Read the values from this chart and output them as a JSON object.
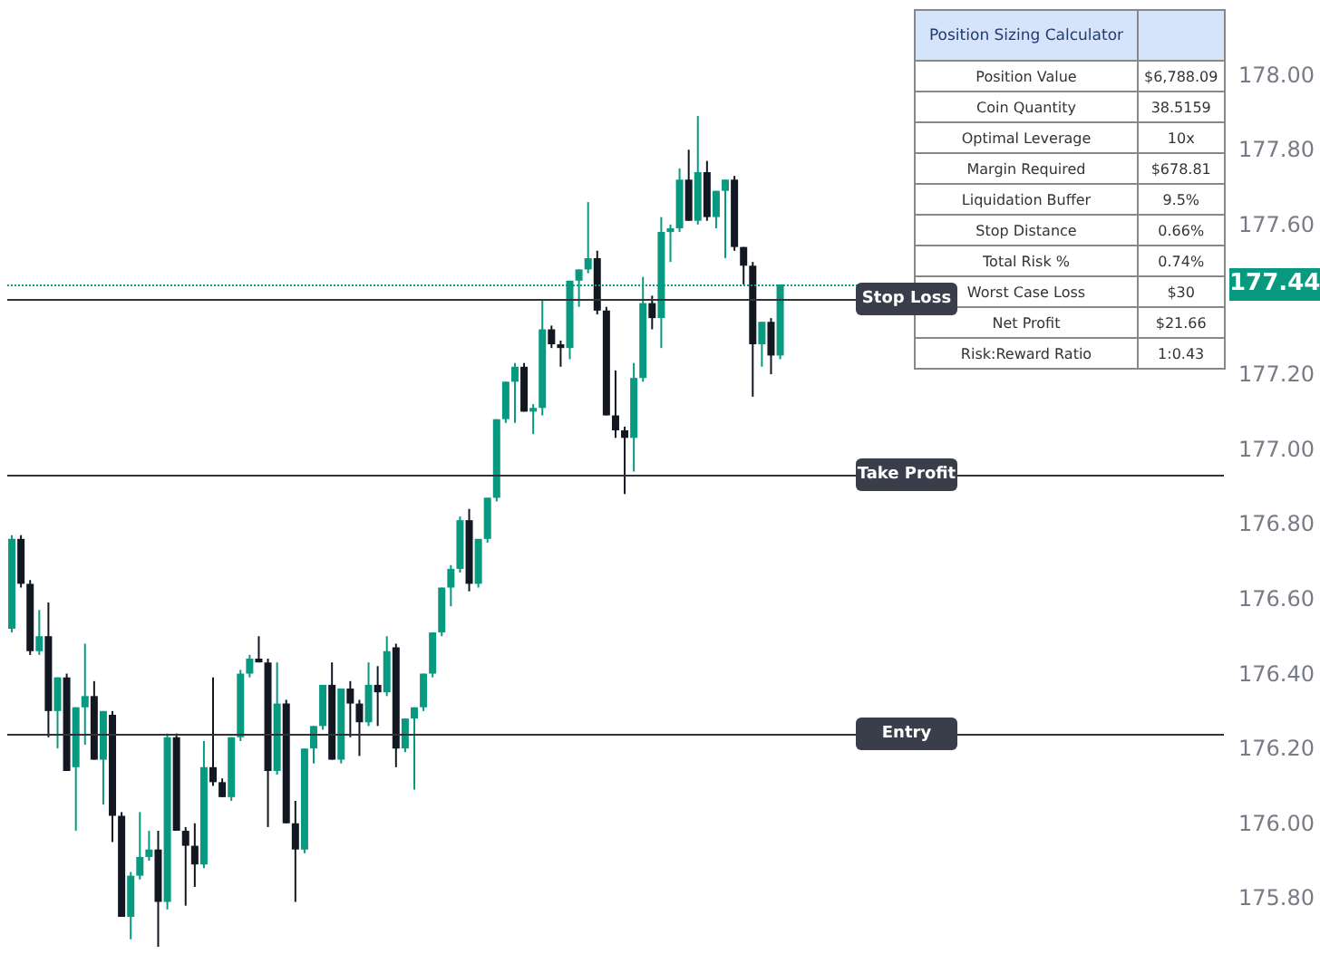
{
  "chart_data": {
    "type": "candlestick",
    "title": "Position Sizing Calculator",
    "categories": [
      null,
      null,
      null,
      null,
      null,
      null,
      null,
      null,
      null,
      null,
      null,
      null,
      null,
      null,
      null,
      null,
      null,
      null,
      null,
      null,
      null,
      null,
      null,
      null,
      null,
      null,
      null,
      null,
      null,
      null,
      null,
      null,
      null,
      null,
      null,
      null,
      null,
      null,
      null,
      null,
      null,
      null,
      null,
      null,
      null,
      null,
      null,
      null,
      null,
      null,
      null,
      null,
      null,
      null,
      null,
      null,
      null,
      null,
      null,
      null,
      null,
      null,
      null,
      null,
      null,
      null,
      null,
      null,
      null,
      null,
      null,
      null,
      null,
      null,
      null,
      null,
      null,
      null,
      null,
      null,
      null,
      null,
      null,
      null,
      null,
      null,
      null,
      null,
      null,
      null,
      null,
      null,
      null,
      null,
      null,
      null,
      null,
      null,
      null,
      null,
      null,
      null,
      null,
      null,
      null,
      null,
      null,
      null,
      null,
      null,
      null,
      null,
      null,
      null,
      null,
      null,
      null,
      null,
      null,
      null,
      null,
      null,
      null,
      null,
      null,
      null,
      null,
      null,
      null,
      null,
      null,
      null,
      null,
      null
    ],
    "ohlc": [
      [
        176.52,
        176.77,
        176.51,
        176.76
      ],
      [
        176.76,
        176.77,
        176.63,
        176.64
      ],
      [
        176.64,
        176.65,
        176.45,
        176.46
      ],
      [
        176.46,
        176.57,
        176.45,
        176.5
      ],
      [
        176.5,
        176.59,
        176.23,
        176.3
      ],
      [
        176.3,
        176.39,
        176.2,
        176.39
      ],
      [
        176.39,
        176.4,
        176.14,
        176.14
      ],
      [
        176.15,
        176.31,
        175.98,
        176.31
      ],
      [
        176.31,
        176.48,
        176.21,
        176.34
      ],
      [
        176.34,
        176.38,
        176.17,
        176.17
      ],
      [
        176.17,
        176.3,
        176.05,
        176.3
      ],
      [
        176.29,
        176.3,
        175.95,
        176.02
      ],
      [
        176.02,
        176.03,
        175.75,
        175.75
      ],
      [
        175.75,
        175.87,
        175.69,
        175.86
      ],
      [
        175.86,
        176.03,
        175.85,
        175.91
      ],
      [
        175.91,
        175.98,
        175.9,
        175.93
      ],
      [
        175.93,
        175.98,
        175.67,
        175.79
      ],
      [
        175.79,
        176.24,
        175.77,
        176.23
      ],
      [
        176.23,
        176.24,
        175.98,
        175.98
      ],
      [
        175.98,
        175.99,
        175.78,
        175.94
      ],
      [
        175.94,
        176.0,
        175.83,
        175.89
      ],
      [
        175.89,
        176.22,
        175.88,
        176.15
      ],
      [
        176.15,
        176.39,
        176.1,
        176.11
      ],
      [
        176.11,
        176.12,
        176.07,
        176.07
      ],
      [
        176.07,
        176.23,
        176.06,
        176.23
      ],
      [
        176.23,
        176.41,
        176.22,
        176.4
      ],
      [
        176.4,
        176.45,
        176.39,
        176.44
      ],
      [
        176.44,
        176.5,
        176.43,
        176.43
      ],
      [
        176.43,
        176.44,
        175.99,
        176.14
      ],
      [
        176.14,
        176.43,
        176.13,
        176.32
      ],
      [
        176.32,
        176.33,
        176.0,
        176.0
      ],
      [
        176.0,
        176.06,
        175.79,
        175.93
      ],
      [
        175.93,
        176.2,
        175.92,
        176.2
      ],
      [
        176.2,
        176.26,
        176.16,
        176.26
      ],
      [
        176.26,
        176.37,
        176.25,
        176.37
      ],
      [
        176.37,
        176.43,
        176.17,
        176.17
      ],
      [
        176.17,
        176.36,
        176.16,
        176.36
      ],
      [
        176.36,
        176.38,
        176.23,
        176.32
      ],
      [
        176.32,
        176.33,
        176.18,
        176.27
      ],
      [
        176.27,
        176.43,
        176.26,
        176.37
      ],
      [
        176.37,
        176.42,
        176.26,
        176.35
      ],
      [
        176.35,
        176.5,
        176.34,
        176.46
      ],
      [
        176.47,
        176.48,
        176.15,
        176.2
      ],
      [
        176.2,
        176.28,
        176.19,
        176.28
      ],
      [
        176.28,
        176.31,
        176.09,
        176.31
      ],
      [
        176.31,
        176.4,
        176.3,
        176.4
      ],
      [
        176.4,
        176.51,
        176.39,
        176.51
      ],
      [
        176.51,
        176.63,
        176.5,
        176.63
      ],
      [
        176.63,
        176.69,
        176.58,
        176.68
      ],
      [
        176.68,
        176.82,
        176.67,
        176.81
      ],
      [
        176.81,
        176.84,
        176.62,
        176.64
      ],
      [
        176.64,
        176.76,
        176.63,
        176.76
      ],
      [
        176.76,
        176.87,
        176.75,
        176.87
      ],
      [
        176.87,
        177.08,
        176.86,
        177.08
      ],
      [
        177.08,
        177.18,
        177.07,
        177.18
      ],
      [
        177.18,
        177.23,
        177.07,
        177.22
      ],
      [
        177.22,
        177.23,
        177.1,
        177.1
      ],
      [
        177.1,
        177.12,
        177.04,
        177.11
      ],
      [
        177.11,
        177.4,
        177.09,
        177.32
      ],
      [
        177.32,
        177.33,
        177.27,
        177.28
      ],
      [
        177.28,
        177.29,
        177.22,
        177.27
      ],
      [
        177.27,
        177.45,
        177.24,
        177.45
      ],
      [
        177.45,
        177.48,
        177.38,
        177.48
      ],
      [
        177.48,
        177.66,
        177.47,
        177.51
      ],
      [
        177.51,
        177.53,
        177.36,
        177.37
      ],
      [
        177.37,
        177.38,
        177.09,
        177.09
      ],
      [
        177.09,
        177.21,
        177.03,
        177.05
      ],
      [
        177.05,
        177.06,
        176.88,
        177.03
      ],
      [
        177.03,
        177.23,
        176.94,
        177.19
      ],
      [
        177.19,
        177.46,
        177.18,
        177.39
      ],
      [
        177.39,
        177.41,
        177.32,
        177.35
      ],
      [
        177.35,
        177.62,
        177.27,
        177.58
      ],
      [
        177.58,
        177.6,
        177.5,
        177.59
      ],
      [
        177.59,
        177.75,
        177.58,
        177.72
      ],
      [
        177.72,
        177.8,
        177.61,
        177.61
      ],
      [
        177.61,
        177.89,
        177.6,
        177.74
      ],
      [
        177.74,
        177.77,
        177.61,
        177.62
      ],
      [
        177.62,
        177.69,
        177.59,
        177.69
      ],
      [
        177.69,
        177.72,
        177.51,
        177.72
      ],
      [
        177.72,
        177.73,
        177.53,
        177.54
      ],
      [
        177.54,
        177.54,
        177.44,
        177.49
      ],
      [
        177.49,
        177.5,
        177.14,
        177.28
      ],
      [
        177.28,
        177.34,
        177.22,
        177.34
      ],
      [
        177.34,
        177.35,
        177.2,
        177.25
      ],
      [
        177.25,
        177.44,
        177.24,
        177.44
      ],
      null,
      null,
      null,
      null,
      null,
      null,
      null,
      null,
      null,
      null,
      null,
      null,
      null,
      null,
      null,
      null,
      null,
      null,
      null,
      null,
      null,
      null,
      null,
      null,
      null,
      null,
      null,
      null,
      null,
      null,
      null,
      null,
      null,
      null,
      null,
      null,
      null,
      null,
      null,
      null,
      null,
      null,
      null,
      null,
      null,
      null,
      null,
      null,
      null
    ],
    "colors": [
      "#089981",
      "#131722",
      "#131722",
      "#089981",
      "#131722",
      "#089981",
      "#131722",
      "#089981",
      "#089981",
      "#131722",
      "#089981",
      "#131722",
      "#131722",
      "#089981",
      "#089981",
      "#089981",
      "#131722",
      "#089981",
      "#131722",
      "#131722",
      "#131722",
      "#089981",
      "#131722",
      "#131722",
      "#089981",
      "#089981",
      "#089981",
      "#131722",
      "#131722",
      "#089981",
      "#131722",
      "#131722",
      "#089981",
      "#089981",
      "#089981",
      "#131722",
      "#089981",
      "#131722",
      "#131722",
      "#089981",
      "#131722",
      "#089981",
      "#131722",
      "#089981",
      "#089981",
      "#089981",
      "#089981",
      "#089981",
      "#089981",
      "#089981",
      "#131722",
      "#089981",
      "#089981",
      "#089981",
      "#089981",
      "#089981",
      "#131722",
      "#089981",
      "#089981",
      "#131722",
      "#131722",
      "#089981",
      "#089981",
      "#089981",
      "#131722",
      "#131722",
      "#131722",
      "#131722",
      "#089981",
      "#089981",
      "#131722",
      "#089981",
      "#089981",
      "#089981",
      "#131722",
      "#089981",
      "#131722",
      "#089981",
      "#089981",
      "#131722",
      "#131722",
      "#131722",
      "#089981",
      "#131722",
      "#089981",
      null,
      null,
      null,
      null,
      null,
      null,
      null,
      null,
      null,
      null,
      null,
      null,
      null,
      null,
      null,
      null,
      null,
      null,
      null,
      null,
      null,
      null,
      null,
      null,
      null,
      null,
      null,
      null,
      null,
      null,
      null,
      null,
      null,
      null,
      null,
      null,
      null,
      null,
      null,
      null,
      null,
      null,
      null,
      null,
      null,
      null,
      null,
      null,
      null
    ],
    "ylim": [
      175.6,
      178.2
    ],
    "yticks": [
      {
        "value": 175.8,
        "label": "175.80"
      },
      {
        "value": 176,
        "label": "176.00"
      },
      {
        "value": 176.2,
        "label": "176.20"
      },
      {
        "value": 176.4,
        "label": "176.40"
      },
      {
        "value": 176.6,
        "label": "176.60"
      },
      {
        "value": 176.8,
        "label": "176.80"
      },
      {
        "value": 177,
        "label": "177.00"
      },
      {
        "value": 177.2,
        "label": "177.20"
      },
      {
        "value": 177.4,
        "label": null
      },
      {
        "value": 177.6,
        "label": "177.60"
      },
      {
        "value": 177.8,
        "label": "177.80"
      },
      {
        "value": 178,
        "label": "178.00"
      }
    ],
    "tick_labels": "y",
    "grid": false,
    "ref_lines": [
      {
        "axis": "y",
        "value": 177.4,
        "label": "Stop Loss"
      },
      {
        "axis": "y",
        "value": 176.93,
        "label": "Take Profit"
      },
      {
        "axis": "y",
        "value": 176.24,
        "label": "Entry"
      },
      {
        "axis": "y",
        "value": 177.44,
        "label": "177.44",
        "color": "#089981",
        "line_style": "dotted"
      }
    ],
    "annotations": [
      "Position Value",
      "$6,788.09",
      "Coin Quantity",
      "38.5159",
      "Optimal Leverage",
      "10x",
      "Margin Required",
      "$678.81",
      "Liquidation Buffer",
      "9.5%",
      "Stop Distance",
      "0.66%",
      "Total Risk %",
      "0.74%",
      "Worst Case Loss",
      "$30",
      "Net Profit",
      "$21.66",
      "Risk:Reward Ratio",
      "1:0.43"
    ]
  }
}
